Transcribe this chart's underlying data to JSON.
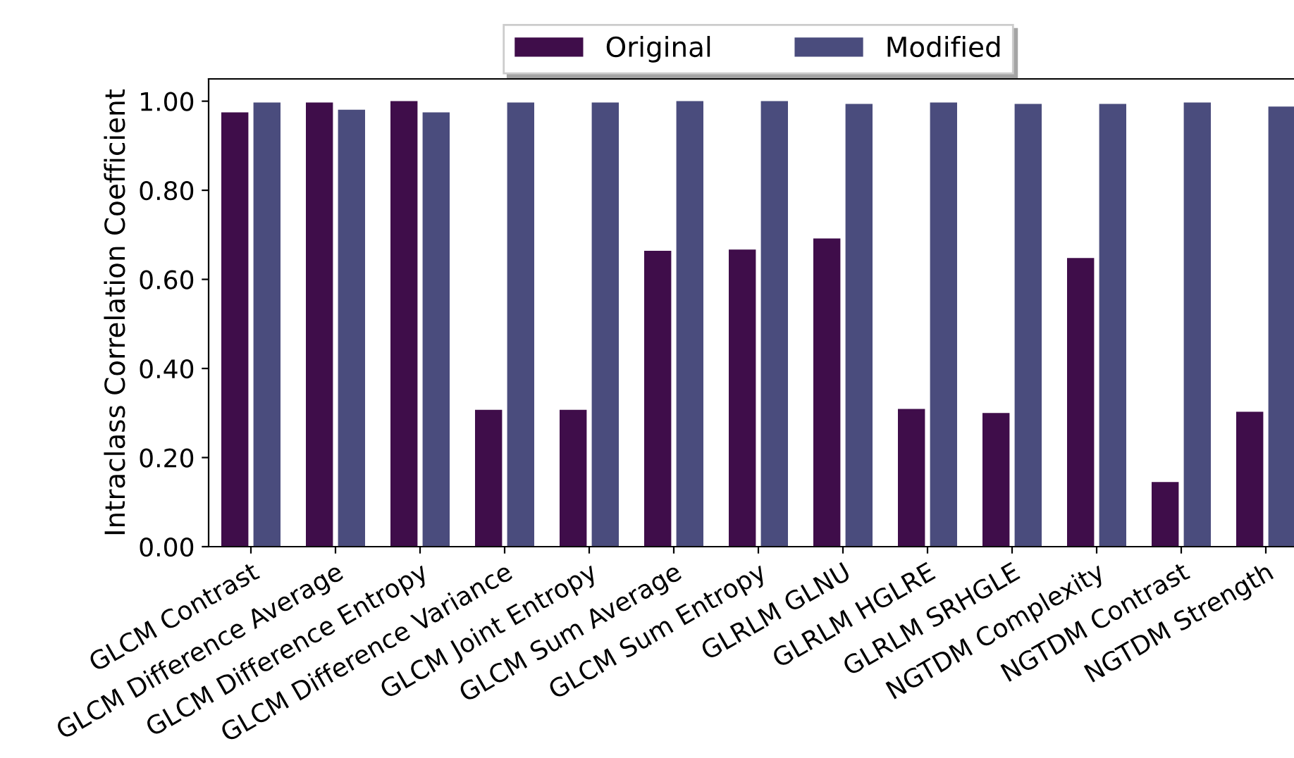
{
  "chart_data": {
    "type": "bar",
    "ylabel": "Intraclass Correlation Coefficient",
    "categories": [
      "GLCM Contrast",
      "GLCM Difference Average",
      "GLCM Difference Entropy",
      "GLCM Difference Variance",
      "GLCM Joint Entropy",
      "GLCM Sum Average",
      "GLCM Sum Entropy",
      "GLRLM GLNU",
      "GLRLM HGLRE",
      "GLRLM SRHGLE",
      "NGTDM Complexity",
      "NGTDM Contrast",
      "NGTDM Strength"
    ],
    "series": [
      {
        "name": "Original",
        "color": "#3f0d4a",
        "values": [
          0.975,
          0.997,
          1.0,
          0.307,
          0.307,
          0.664,
          0.667,
          0.692,
          0.309,
          0.3,
          0.648,
          0.145,
          0.303
        ]
      },
      {
        "name": "Modified",
        "color": "#4a4c7d",
        "values": [
          0.997,
          0.981,
          0.975,
          0.997,
          0.997,
          1.0,
          1.0,
          0.994,
          0.997,
          0.994,
          0.994,
          0.997,
          0.988
        ]
      }
    ],
    "ylim": [
      0,
      1.05
    ],
    "yticks": [
      {
        "value": 0,
        "label": "0.00"
      },
      {
        "value": 0.2,
        "label": "0.20"
      },
      {
        "value": 0.4,
        "label": "0.40"
      },
      {
        "value": 0.6,
        "label": "0.60"
      },
      {
        "value": 0.8,
        "label": "0.80"
      },
      {
        "value": 1.0,
        "label": "1.00"
      }
    ],
    "grid": false,
    "legend": "top"
  }
}
